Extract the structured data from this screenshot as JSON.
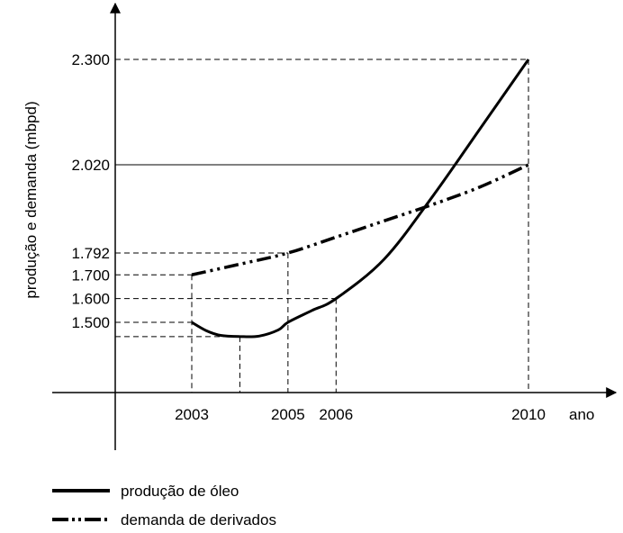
{
  "chart_data": {
    "type": "line",
    "title": "",
    "xlabel": "ano",
    "ylabel": "produção e demanda (mbpd)",
    "x_ticks": [
      "2003",
      "2005",
      "2006",
      "2010"
    ],
    "y_ticks": [
      "1.500",
      "1.600",
      "1.700",
      "1.792",
      "2.020",
      "2.300"
    ],
    "reference_line": {
      "y": 2020
    },
    "series": [
      {
        "name": "produção de óleo",
        "style": "solid",
        "color": "#000000",
        "points": [
          [
            2003,
            1500
          ],
          [
            2003.3,
            1465
          ],
          [
            2003.6,
            1445
          ],
          [
            2004,
            1440
          ],
          [
            2004.4,
            1442
          ],
          [
            2004.8,
            1468
          ],
          [
            2005,
            1500
          ],
          [
            2005.5,
            1550
          ],
          [
            2006,
            1600
          ],
          [
            2007,
            1766
          ],
          [
            2008,
            1937
          ],
          [
            2009,
            2117
          ],
          [
            2010,
            2300
          ]
        ]
      },
      {
        "name": "demanda de derivados",
        "style": "dash-dot-dot",
        "color": "#000000",
        "points": [
          [
            2003,
            1700
          ],
          [
            2004,
            1745
          ],
          [
            2005,
            1792
          ],
          [
            2006,
            1833
          ],
          [
            2007,
            1875
          ],
          [
            2008,
            1917
          ],
          [
            2009,
            1963
          ],
          [
            2010,
            2020
          ]
        ]
      }
    ],
    "guides": {
      "x": [
        2003,
        2004,
        2005,
        2006
      ],
      "y": [
        1440
      ]
    }
  }
}
